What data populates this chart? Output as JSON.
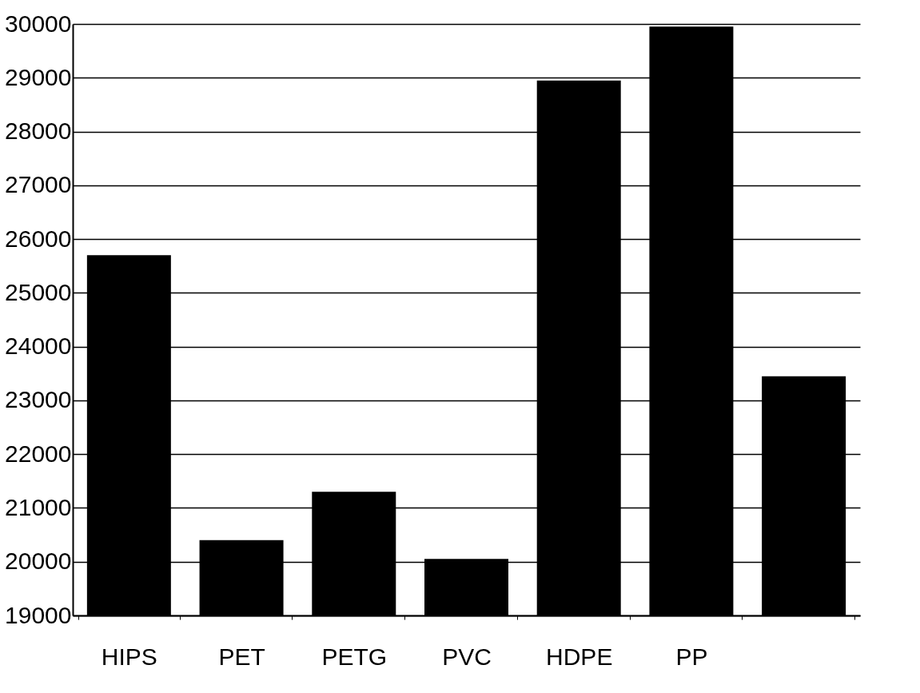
{
  "chart_data": {
    "type": "bar",
    "categories": [
      "HIPS",
      "PET",
      "PETG",
      "PVC",
      "HDPE",
      "PP",
      null
    ],
    "values": [
      25700,
      20400,
      21300,
      20050,
      28950,
      29950,
      23450
    ],
    "color": "#000000",
    "ylim": [
      19000,
      30000
    ],
    "yticks": [
      19000,
      20000,
      21000,
      22000,
      23000,
      24000,
      25000,
      26000,
      27000,
      28000,
      29000,
      30000
    ],
    "grid": "y"
  }
}
